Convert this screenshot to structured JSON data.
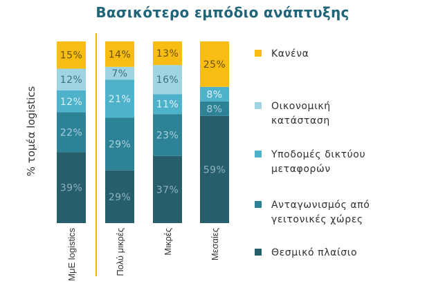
{
  "chart_data": {
    "type": "bar",
    "stacked": true,
    "percent_stacked": true,
    "title": "Βασικότερο εμπόδιο ανάπτυξης",
    "ylabel": "% τομέα logistics",
    "xlabel": "",
    "categories": [
      "ΜμΕ logistics",
      "Πολύ μικρές",
      "Μικρές",
      "Μεσαίες"
    ],
    "series": [
      {
        "name": "Θεσμικό πλαίσιο",
        "color": "#265e6b",
        "label_color": "#8fb4bf",
        "values": [
          39,
          29,
          37,
          59
        ]
      },
      {
        "name": "Ανταγωνισμός από γειτονικές χώρες",
        "color": "#2e8296",
        "label_color": "#a6d0dc",
        "values": [
          22,
          29,
          23,
          8
        ]
      },
      {
        "name": "Υποδομές δικτύου μεταφορών",
        "color": "#4fb2cb",
        "label_color": "#daf2f8",
        "values": [
          12,
          21,
          11,
          8
        ]
      },
      {
        "name": "Οικονομική κατάσταση",
        "color": "#9fd4e2",
        "label_color": "#3e6f7c",
        "values": [
          12,
          7,
          16,
          0
        ]
      },
      {
        "name": "Κανένα",
        "color": "#f7bd12",
        "label_color": "#6b5000",
        "values": [
          15,
          14,
          13,
          25
        ]
      }
    ],
    "legend_labels": [
      "Κανένα",
      "Οικονομική\nκατάσταση",
      "Υποδομές δικτύου\nμεταφορών",
      "Ανταγωνισμός από\nγειτονικές χώρες",
      "Θεσμικό πλαίσιο"
    ],
    "separator_color": "#f2b705",
    "legend_position": "right",
    "grid": false
  }
}
